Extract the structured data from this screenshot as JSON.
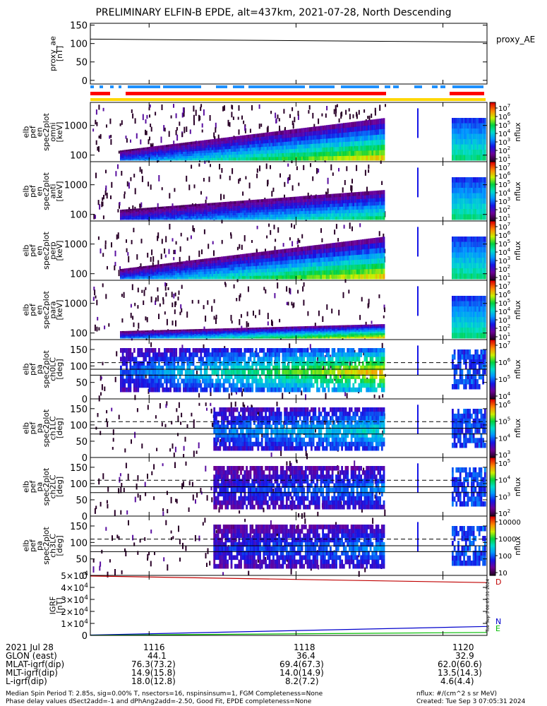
{
  "title": "PRELIMINARY ELFIN-B EPDE, alt=437km, 2021-07-28, North Descending",
  "chart_data": [
    {
      "type": "line",
      "name": "proxy_ae",
      "ylabel": "proxy_ae [nT]",
      "legend": "proxy_AE",
      "ylim": [
        -10,
        155
      ],
      "yticks": [
        "150",
        "100",
        "50",
        "0"
      ],
      "x": [
        1115.2,
        1120.6
      ],
      "y": [
        112,
        104
      ]
    },
    {
      "type": "heatmap",
      "name": "elb pef en spec2plot omni",
      "ylabel": [
        "elb",
        "pef",
        "en",
        "spec2plot",
        "omni",
        "[keV]"
      ],
      "yscale": "log",
      "ylim": [
        60,
        6000
      ],
      "yticks": [
        "1000",
        "100"
      ],
      "zlabel": "nflux",
      "zticks": [
        "10^7",
        "10^6",
        "10^5",
        "10^4",
        "10^3",
        "10^2",
        "10^1"
      ]
    },
    {
      "type": "heatmap",
      "name": "elb pef en spec2plot anti",
      "ylabel": [
        "elb",
        "pef",
        "en",
        "spec2plot",
        "anti",
        "[keV]"
      ],
      "yscale": "log",
      "ylim": [
        60,
        6000
      ],
      "yticks": [
        "1000",
        "100"
      ],
      "zlabel": "nflux",
      "zticks": [
        "10^7",
        "10^6",
        "10^5",
        "10^4",
        "10^3",
        "10^2",
        "10^1"
      ]
    },
    {
      "type": "heatmap",
      "name": "elb pef en spec2plot perp",
      "ylabel": [
        "elb",
        "pef",
        "en",
        "spec2plot",
        "perp",
        "[keV]"
      ],
      "yscale": "log",
      "ylim": [
        60,
        6000
      ],
      "yticks": [
        "1000",
        "100"
      ],
      "zlabel": "nflux",
      "zticks": [
        "10^7",
        "10^6",
        "10^5",
        "10^4",
        "10^3",
        "10^2",
        "10^1"
      ]
    },
    {
      "type": "heatmap",
      "name": "elb pef en spec2plot para",
      "ylabel": [
        "elb",
        "pef",
        "en",
        "spec2plot",
        "para",
        "[keV]"
      ],
      "yscale": "log",
      "ylim": [
        60,
        6000
      ],
      "yticks": [
        "1000",
        "100"
      ],
      "zlabel": "nflux",
      "zticks": [
        "10^7",
        "10^6",
        "10^5",
        "10^4",
        "10^3",
        "10^2",
        "10^1"
      ]
    },
    {
      "type": "heatmap",
      "name": "elb pef pa spec2plot ch0LC",
      "ylabel": [
        "elb",
        "pef",
        "pa",
        "spec2plot",
        "ch0LC",
        "[deg]"
      ],
      "ylim": [
        0,
        180
      ],
      "yticks": [
        "150",
        "100",
        "50",
        "0"
      ],
      "zlabel": "nflux",
      "zticks": [
        "10^7",
        "10^6",
        "10^5",
        "10^4"
      ]
    },
    {
      "type": "heatmap",
      "name": "elb pef pa spec2plot ch1LC",
      "ylabel": [
        "elb",
        "pef",
        "pa",
        "spec2plot",
        "ch1LC",
        "[deg]"
      ],
      "ylim": [
        0,
        180
      ],
      "yticks": [
        "150",
        "100",
        "50",
        "0"
      ],
      "zlabel": "nflux",
      "zticks": [
        "10^6",
        "10^5",
        "10^4",
        "10^3"
      ]
    },
    {
      "type": "heatmap",
      "name": "elb pef pa spec2plot ch2LC",
      "ylabel": [
        "elb",
        "pef",
        "pa",
        "spec2plot",
        "ch2LC",
        "[deg]"
      ],
      "ylim": [
        0,
        180
      ],
      "yticks": [
        "150",
        "100",
        "50",
        "0"
      ],
      "zlabel": "nflux",
      "zticks": [
        "10^5",
        "10^4",
        "10^3",
        "10^2"
      ]
    },
    {
      "type": "heatmap",
      "name": "elb pef pa spec2plot ch3LC",
      "ylabel": [
        "elb",
        "pef",
        "pa",
        "spec2plot",
        "ch3LC",
        "[deg]"
      ],
      "ylim": [
        0,
        180
      ],
      "yticks": [
        "150",
        "100",
        "50",
        "0"
      ],
      "zlabel": "nflux",
      "zticks": [
        "10000",
        "1000",
        "100",
        "10"
      ]
    },
    {
      "type": "line",
      "name": "IGRF",
      "ylabel": "IGRF [nT]",
      "ylim": [
        0,
        50000
      ],
      "yticks": [
        "5×10^4",
        "4×10^4",
        "3×10^4",
        "2×10^4",
        "1×10^4",
        "0"
      ],
      "series": [
        {
          "name": "D",
          "color": "#c00000",
          "x": [
            1115.2,
            1120.6
          ],
          "y": [
            49500,
            44000
          ]
        },
        {
          "name": "N",
          "color": "#0000cc",
          "x": [
            1115.2,
            1120.6
          ],
          "y": [
            300,
            7500
          ]
        },
        {
          "name": "E",
          "color": "#00bb00",
          "x": [
            1115.2,
            1120.6
          ],
          "y": [
            100,
            2500
          ]
        }
      ]
    }
  ],
  "xaxis": {
    "ticks": [
      "1116",
      "1118",
      "1120"
    ],
    "xlim": [
      1115.2,
      1120.6
    ]
  },
  "ephem": [
    {
      "label": "2021 Jul 28",
      "values": [
        "1116",
        "1118",
        "1120"
      ]
    },
    {
      "label": "GLON (east)",
      "values": [
        "44.1",
        "36.4",
        "32.9"
      ]
    },
    {
      "label": "MLAT-igrf(dip)",
      "values": [
        "76.3(73.2)",
        "69.4(67.3)",
        "62.0(60.6)"
      ]
    },
    {
      "label": "MLT-igrf(dip)",
      "values": [
        "14.9(15.8)",
        "14.0(14.9)",
        "13.5(14.3)"
      ]
    },
    {
      "label": "L-igrf(dip)",
      "values": [
        "18.0(12.8)",
        "8.2(7.2)",
        "4.6(4.4)"
      ]
    }
  ],
  "footer": {
    "left1": "Median Spin Period T: 2.85s, sig=0.00% T, nsectors=16, nspinsinsum=1, FGM Completeness=None",
    "left2": "Phase delay values dSect2add=-1 and dPhAng2add=-2.50, Good Fit, EPDE completeness=None",
    "right1": "nflux: #/(cm^2 s sr MeV)",
    "right2": "Created: Tue Sep  3 07:05:31 2024",
    "stamp": "Tue Sep  3 00:05:31 2024"
  },
  "colors": {
    "status_blue": "#1e90ff",
    "status_red": "#ff0000",
    "status_yellow": "#ffd700",
    "ae_line": "#000000"
  }
}
